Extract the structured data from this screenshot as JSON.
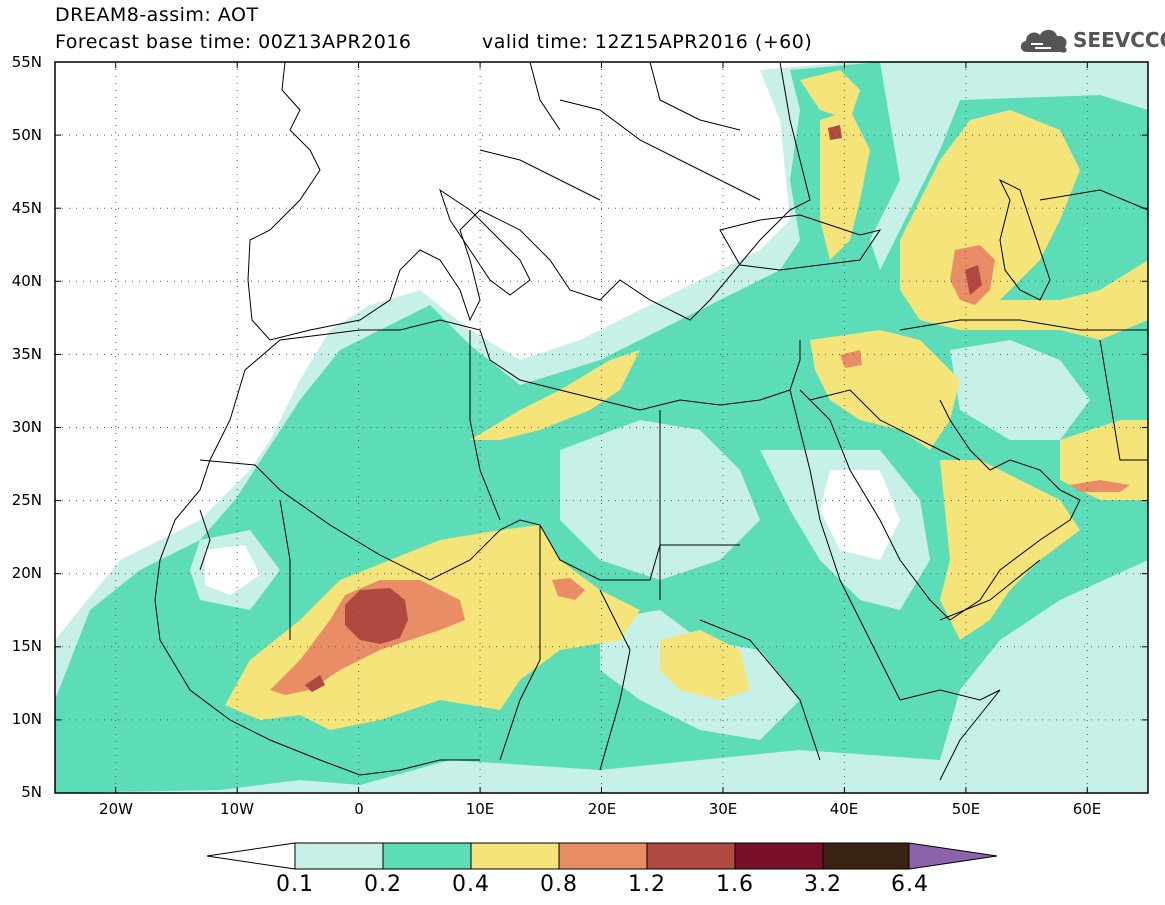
{
  "header": {
    "title_line1": "DREAM8-assim: AOT",
    "title_line2": "Forecast base time: 00Z13APR2016",
    "valid_time": "valid time: 12Z15APR2016 (+60)",
    "logo_text": "SEEVCCC"
  },
  "map": {
    "lat_range": [
      5,
      55
    ],
    "lon_range": [
      -25,
      65
    ],
    "lat_ticks": [
      "55N",
      "50N",
      "45N",
      "40N",
      "35N",
      "30N",
      "25N",
      "20N",
      "15N",
      "10N",
      "5N"
    ],
    "lon_ticks": [
      "20W",
      "10W",
      "0",
      "10E",
      "20E",
      "30E",
      "40E",
      "50E",
      "60E"
    ]
  },
  "colorbar": {
    "labels": [
      "0.1",
      "0.2",
      "0.4",
      "0.8",
      "1.2",
      "1.6",
      "3.2",
      "6.4"
    ],
    "colors": [
      "#ffffff",
      "#c7f0e8",
      "#5ddcb8",
      "#f5e47a",
      "#e98d67",
      "#b04a40",
      "#7a0f2a",
      "#3a2214",
      "#8c62ab"
    ]
  }
}
